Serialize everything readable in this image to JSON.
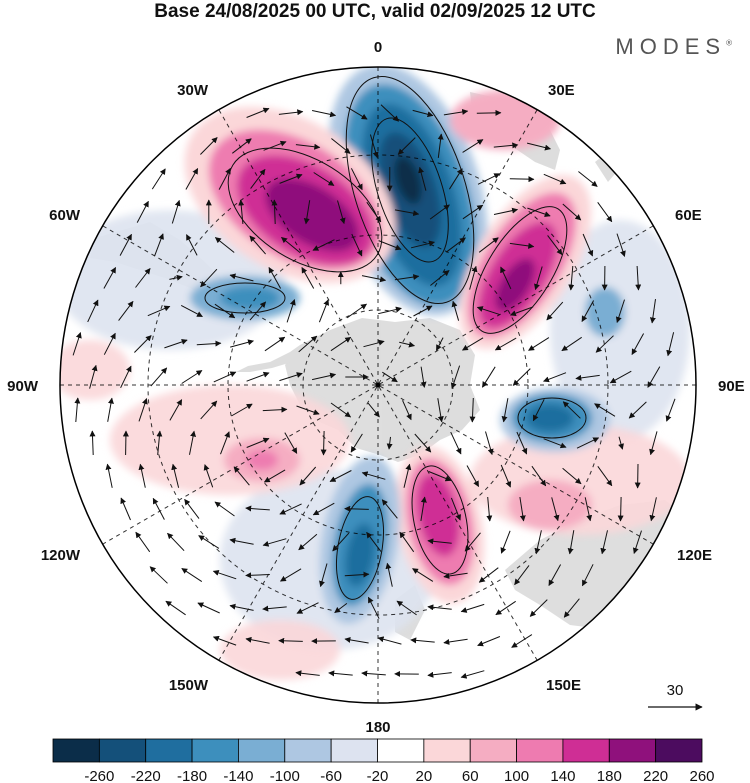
{
  "title": "Base 24/08/2025 00 UTC, valid 02/09/2025 12 UTC",
  "brand": "MODES",
  "brand_mark": "®",
  "map": {
    "projection": "south-polar-stereographic",
    "longitude_labels": {
      "top": "0",
      "top_right": "30E",
      "right_upper": "60E",
      "right": "90E",
      "right_lower": "120E",
      "bottom_right": "150E",
      "bottom": "180",
      "bottom_left": "150W",
      "left_lower": "120W",
      "left": "90W",
      "left_upper": "60W",
      "top_left": "30W"
    },
    "reference_vector_value": "30"
  },
  "colorbar": {
    "ticks": [
      "-260",
      "-220",
      "-180",
      "-140",
      "-100",
      "-60",
      "-20",
      "20",
      "60",
      "100",
      "140",
      "180",
      "220",
      "260"
    ],
    "colors": [
      "#0b2d49",
      "#14507a",
      "#1f6e9f",
      "#3d8fbd",
      "#7aaed3",
      "#aec7e2",
      "#dde3f0",
      "#ffffff",
      "#fbd7d9",
      "#f5adc2",
      "#ee7bb0",
      "#cf2e95",
      "#8f117c",
      "#4c0c5f"
    ]
  },
  "colors": {
    "land": "#d8d8d8",
    "grid": "#000000",
    "rim": "#000000"
  }
}
